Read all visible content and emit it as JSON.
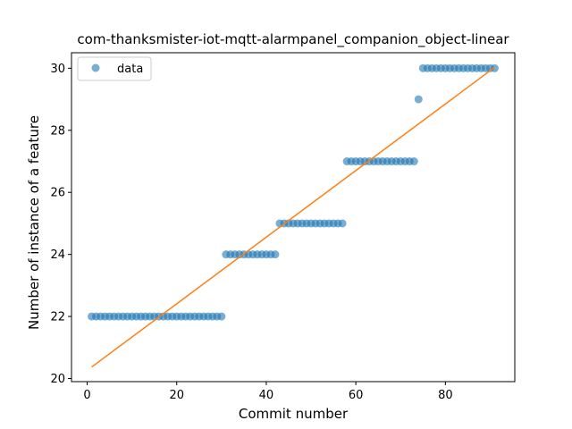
{
  "chart_data": {
    "type": "scatter",
    "title": "com-thanksmister-iot-mqtt-alarmpanel_companion_object-linear",
    "xlabel": "Commit number",
    "ylabel": "Number of instance of a feature",
    "xlim": [
      -3.5,
      95.5
    ],
    "ylim": [
      19.9,
      30.5
    ],
    "xticks": [
      0,
      20,
      40,
      60,
      80
    ],
    "yticks": [
      20,
      22,
      24,
      26,
      28,
      30
    ],
    "grid": false,
    "legend": {
      "placement": "top-left",
      "entries": [
        "data"
      ]
    },
    "colors": {
      "data": "#1f77b4",
      "fit": "#ff7f0e"
    },
    "series": [
      {
        "name": "data",
        "kind": "scatter",
        "x": [
          1,
          2,
          3,
          4,
          5,
          6,
          7,
          8,
          9,
          10,
          11,
          12,
          13,
          14,
          15,
          16,
          17,
          18,
          19,
          20,
          21,
          22,
          23,
          24,
          25,
          26,
          27,
          28,
          29,
          30,
          31,
          32,
          33,
          34,
          35,
          36,
          37,
          38,
          39,
          40,
          41,
          42,
          43,
          44,
          45,
          46,
          47,
          48,
          49,
          50,
          51,
          52,
          53,
          54,
          55,
          56,
          57,
          58,
          59,
          60,
          61,
          62,
          63,
          64,
          65,
          66,
          67,
          68,
          69,
          70,
          71,
          72,
          73,
          74,
          75,
          76,
          77,
          78,
          79,
          80,
          81,
          82,
          83,
          84,
          85,
          86,
          87,
          88,
          89,
          90,
          91
        ],
        "y": [
          22,
          22,
          22,
          22,
          22,
          22,
          22,
          22,
          22,
          22,
          22,
          22,
          22,
          22,
          22,
          22,
          22,
          22,
          22,
          22,
          22,
          22,
          22,
          22,
          22,
          22,
          22,
          22,
          22,
          22,
          24,
          24,
          24,
          24,
          24,
          24,
          24,
          24,
          24,
          24,
          24,
          24,
          25,
          25,
          25,
          25,
          25,
          25,
          25,
          25,
          25,
          25,
          25,
          25,
          25,
          25,
          25,
          27,
          27,
          27,
          27,
          27,
          27,
          27,
          27,
          27,
          27,
          27,
          27,
          27,
          27,
          27,
          27,
          29,
          30,
          30,
          30,
          30,
          30,
          30,
          30,
          30,
          30,
          30,
          30,
          30,
          30,
          30,
          30,
          30,
          30
        ]
      },
      {
        "kind": "line",
        "x": [
          1,
          91
        ],
        "y": [
          20.37,
          30.03
        ]
      }
    ]
  }
}
